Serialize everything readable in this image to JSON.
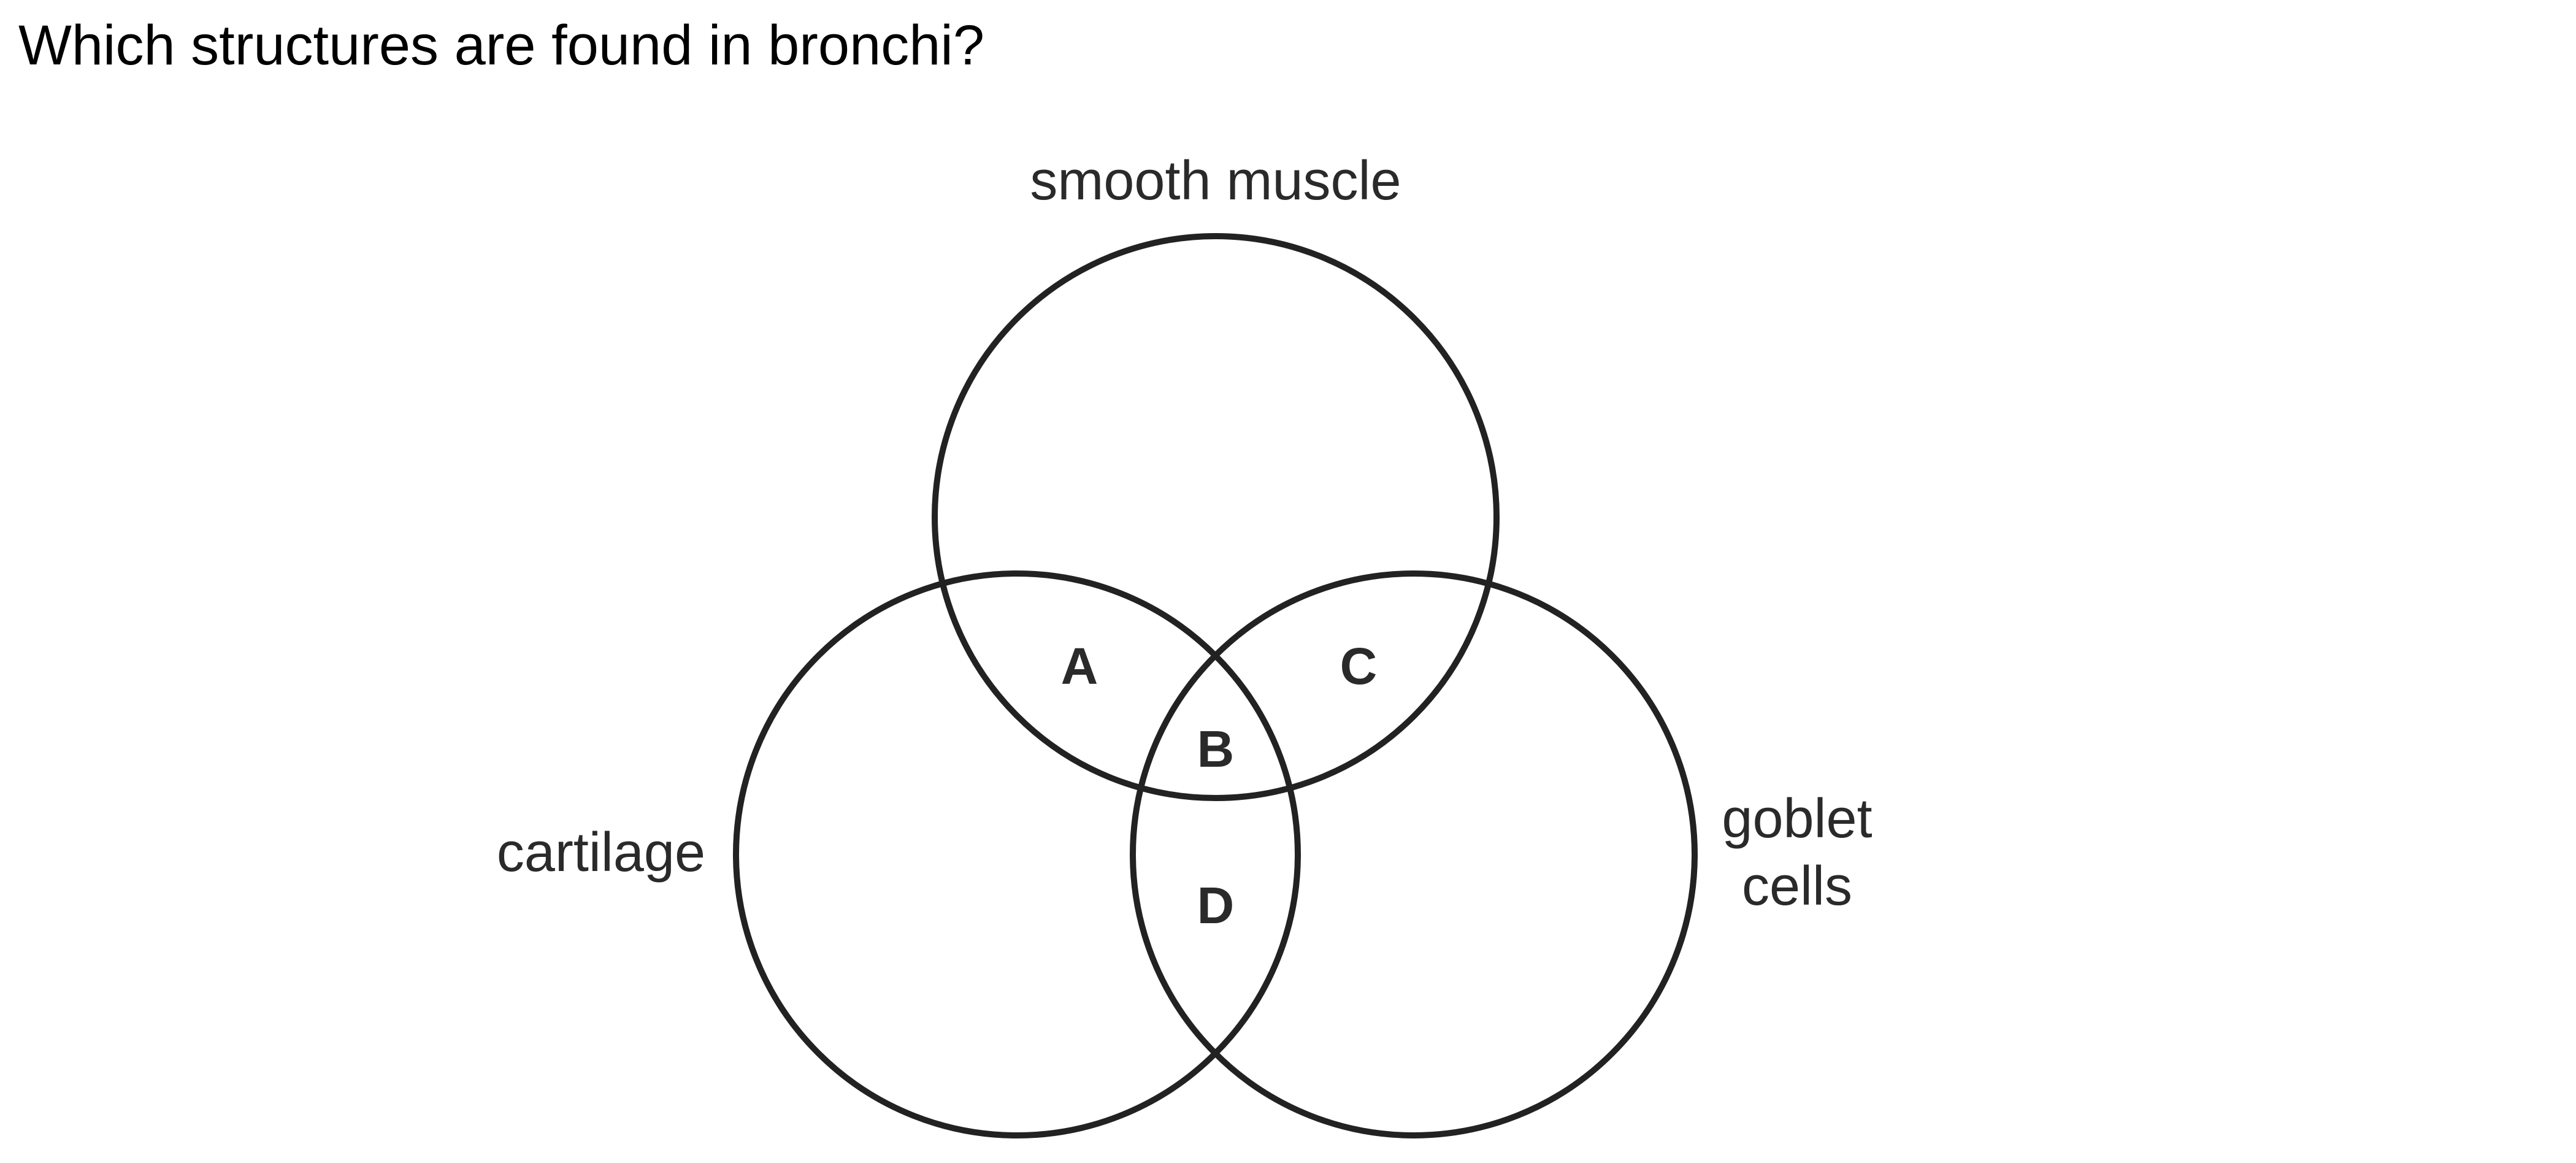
{
  "question": "Which structures are found in bronchi?",
  "diagram": {
    "sets": {
      "top": "smooth muscle",
      "left": "cartilage",
      "right_line1": "goblet",
      "right_line2": "cells"
    },
    "regions": {
      "a": "A",
      "b": "B",
      "c": "C",
      "d": "D"
    }
  }
}
